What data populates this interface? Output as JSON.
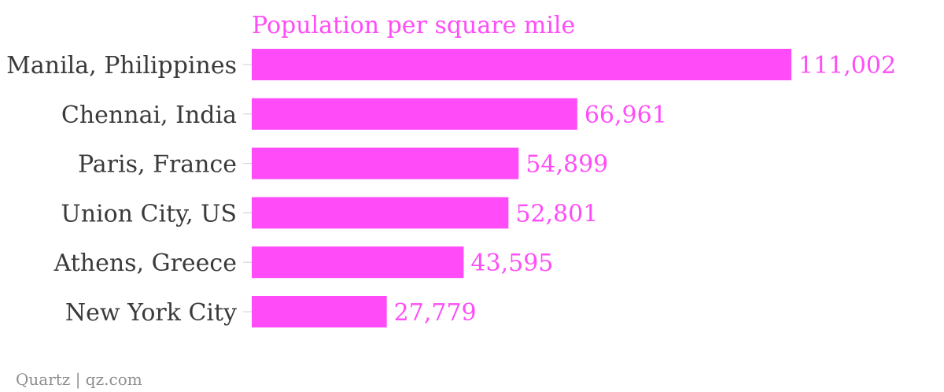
{
  "chart_data": {
    "type": "bar",
    "orientation": "horizontal",
    "series_title": "Population per square mile",
    "categories": [
      "Manila, Philippines",
      "Chennai, India",
      "Paris, France",
      "Union City, US",
      "Athens, Greece",
      "New York City"
    ],
    "values": [
      111002,
      66961,
      54899,
      52801,
      43595,
      27779
    ],
    "value_labels": [
      "111,002",
      "66,961",
      "54,899",
      "52,801",
      "43,595",
      "27,779"
    ],
    "xlim": [
      0,
      111002
    ],
    "grid": false,
    "bar_color": "#ff4cf8",
    "label_color": "#ff4cf8",
    "category_color": "#3a3a3a"
  },
  "source": "Quartz | qz.com"
}
